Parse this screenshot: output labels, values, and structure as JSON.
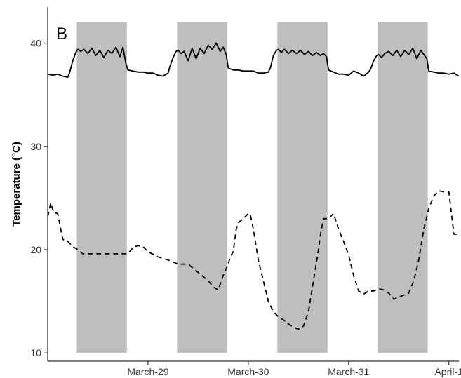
{
  "chart_data": {
    "type": "line",
    "panel_label": "B",
    "xlabel": "",
    "ylabel": "Temperature (°C)",
    "xlim": [
      0,
      4.1
    ],
    "ylim": [
      9.2,
      43.5
    ],
    "yticks": [
      10,
      20,
      30,
      40
    ],
    "xticks": [
      {
        "label": "March-29",
        "x": 1
      },
      {
        "label": "March-30",
        "x": 2
      },
      {
        "label": "March-31",
        "x": 3
      },
      {
        "label": "April-1",
        "x": 4
      }
    ],
    "grid": false,
    "legend": "none",
    "colors": {
      "shade": "#bebebe",
      "line": "#000000",
      "axis": "#333333"
    },
    "shaded_periods": [
      {
        "from": 0.29,
        "to": 0.79,
        "ymin": 10,
        "ymax": 42
      },
      {
        "from": 1.29,
        "to": 1.79,
        "ymin": 10,
        "ymax": 42
      },
      {
        "from": 2.29,
        "to": 2.79,
        "ymin": 10,
        "ymax": 42
      },
      {
        "from": 3.29,
        "to": 3.79,
        "ymin": 10,
        "ymax": 42
      }
    ],
    "series": [
      {
        "style": "solid",
        "x": [
          0,
          0.05,
          0.1,
          0.15,
          0.2,
          0.22,
          0.25,
          0.28,
          0.3,
          0.33,
          0.36,
          0.4,
          0.44,
          0.48,
          0.52,
          0.56,
          0.6,
          0.64,
          0.68,
          0.72,
          0.75,
          0.78,
          0.8,
          0.85,
          0.9,
          0.95,
          1.0,
          1.05,
          1.1,
          1.15,
          1.2,
          1.22,
          1.25,
          1.28,
          1.3,
          1.33,
          1.36,
          1.4,
          1.44,
          1.48,
          1.52,
          1.56,
          1.6,
          1.64,
          1.68,
          1.72,
          1.75,
          1.78,
          1.8,
          1.85,
          1.9,
          1.95,
          2.0,
          2.05,
          2.1,
          2.15,
          2.2,
          2.22,
          2.25,
          2.28,
          2.3,
          2.33,
          2.36,
          2.4,
          2.44,
          2.48,
          2.52,
          2.56,
          2.6,
          2.64,
          2.68,
          2.72,
          2.75,
          2.78,
          2.8,
          2.85,
          2.9,
          2.95,
          3.0,
          3.05,
          3.1,
          3.15,
          3.2,
          3.22,
          3.25,
          3.28,
          3.3,
          3.33,
          3.36,
          3.4,
          3.44,
          3.48,
          3.52,
          3.56,
          3.6,
          3.64,
          3.68,
          3.72,
          3.75,
          3.78,
          3.8,
          3.85,
          3.9,
          3.95,
          4.0,
          4.05,
          4.1
        ],
        "y": [
          37.0,
          36.9,
          37.0,
          36.8,
          36.7,
          37.2,
          38.3,
          39.1,
          39.4,
          39.2,
          39.4,
          39.0,
          39.5,
          38.8,
          39.3,
          38.6,
          39.3,
          39.0,
          39.6,
          38.7,
          39.6,
          38.0,
          37.4,
          37.3,
          37.2,
          37.2,
          37.1,
          37.1,
          36.9,
          36.8,
          37.1,
          37.8,
          38.6,
          39.2,
          39.3,
          39.0,
          39.2,
          38.3,
          39.5,
          38.5,
          39.5,
          39.0,
          39.8,
          39.4,
          40.0,
          39.2,
          39.6,
          38.9,
          37.6,
          37.4,
          37.4,
          37.3,
          37.3,
          37.3,
          37.1,
          37.1,
          37.2,
          37.6,
          38.8,
          39.3,
          39.4,
          39.1,
          39.4,
          39.0,
          39.3,
          39.0,
          39.3,
          38.9,
          39.2,
          38.8,
          39.1,
          38.8,
          39.0,
          38.7,
          37.4,
          37.2,
          37.0,
          37.0,
          36.9,
          37.3,
          37.1,
          36.8,
          37.2,
          37.5,
          38.3,
          38.8,
          38.9,
          38.6,
          39.0,
          39.2,
          38.8,
          39.3,
          38.7,
          39.3,
          38.9,
          39.5,
          38.5,
          39.3,
          38.9,
          38.5,
          37.3,
          37.2,
          37.1,
          37.1,
          37.0,
          37.1,
          36.8
        ]
      },
      {
        "style": "dashed",
        "x": [
          0,
          0.03,
          0.06,
          0.1,
          0.15,
          0.2,
          0.25,
          0.3,
          0.35,
          0.4,
          0.5,
          0.6,
          0.7,
          0.8,
          0.85,
          0.9,
          0.95,
          1.0,
          1.1,
          1.2,
          1.3,
          1.4,
          1.5,
          1.6,
          1.65,
          1.7,
          1.75,
          1.8,
          1.82,
          1.85,
          1.88,
          1.9,
          1.95,
          2.0,
          2.02,
          2.05,
          2.1,
          2.15,
          2.2,
          2.25,
          2.3,
          2.35,
          2.4,
          2.45,
          2.5,
          2.55,
          2.6,
          2.65,
          2.7,
          2.72,
          2.75,
          2.8,
          2.85,
          2.9,
          2.95,
          3.0,
          3.05,
          3.1,
          3.15,
          3.2,
          3.25,
          3.3,
          3.35,
          3.4,
          3.45,
          3.5,
          3.55,
          3.6,
          3.65,
          3.7,
          3.75,
          3.8,
          3.85,
          3.9,
          3.95,
          4.0,
          4.05,
          4.1
        ],
        "y": [
          23.2,
          24.5,
          23.6,
          23.5,
          21.0,
          20.8,
          20.3,
          20.0,
          19.6,
          19.6,
          19.6,
          19.6,
          19.6,
          19.6,
          20.2,
          20.4,
          20.3,
          19.8,
          19.3,
          19.0,
          18.6,
          18.6,
          17.8,
          17.0,
          16.4,
          16.1,
          17.5,
          18.6,
          19.3,
          19.8,
          22.0,
          22.6,
          23.0,
          23.5,
          23.4,
          22.0,
          19.0,
          17.0,
          15.0,
          14.0,
          13.5,
          13.2,
          12.8,
          12.5,
          12.3,
          12.6,
          14.0,
          17.0,
          20.0,
          21.5,
          23.0,
          23.0,
          23.5,
          22.0,
          20.8,
          19.5,
          17.5,
          16.0,
          15.7,
          16.0,
          16.0,
          16.2,
          16.1,
          15.8,
          15.2,
          15.4,
          15.6,
          15.8,
          17.0,
          19.0,
          22.0,
          24.0,
          25.2,
          25.7,
          25.6,
          25.6,
          21.5,
          21.5
        ]
      }
    ]
  }
}
